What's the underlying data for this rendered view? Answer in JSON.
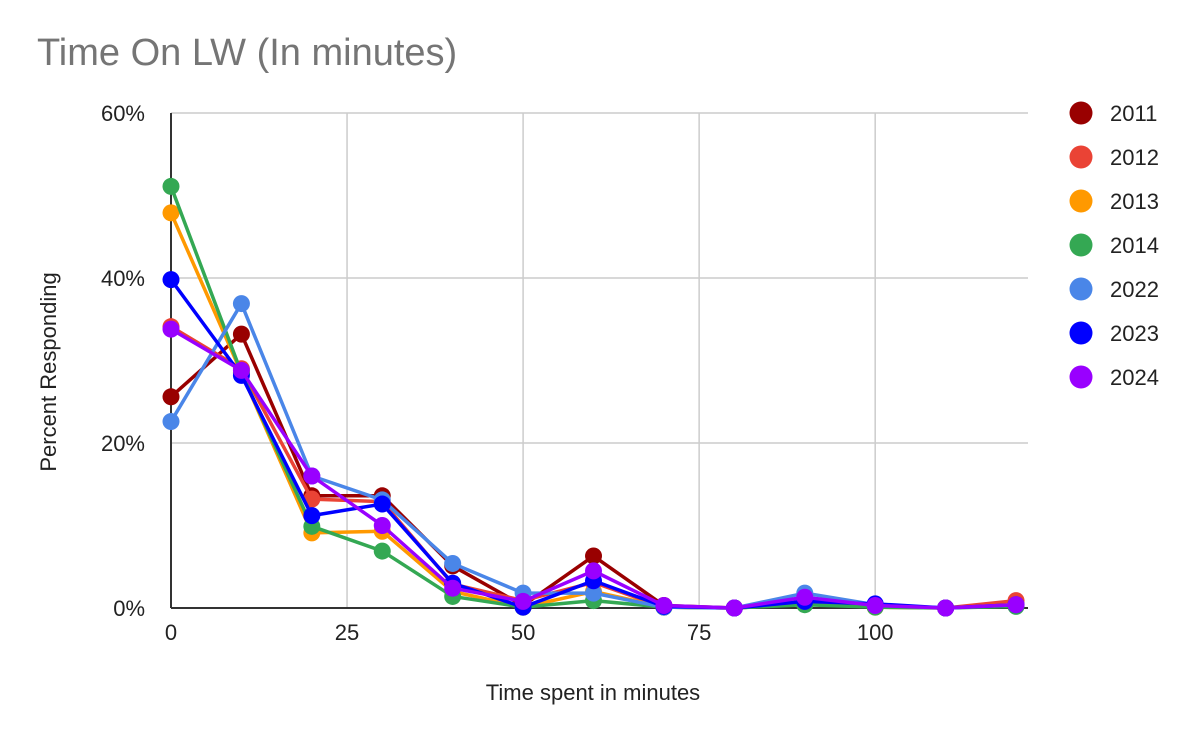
{
  "chart_data": {
    "type": "line",
    "title": "Time On LW (In minutes)",
    "xlabel": "Time spent in minutes",
    "ylabel": "Percent Responding",
    "xlim": [
      -2,
      122
    ],
    "ylim": [
      0,
      0.6
    ],
    "x_ticks": [
      0,
      25,
      50,
      75,
      100
    ],
    "x_tick_labels": [
      "0",
      "25",
      "50",
      "75",
      "100"
    ],
    "y_ticks": [
      0,
      0.2,
      0.4,
      0.6
    ],
    "y_tick_labels": [
      "0%",
      "20%",
      "40%",
      "60%"
    ],
    "grid": true,
    "legend_position": "right",
    "x": [
      0,
      10,
      20,
      30,
      40,
      50,
      60,
      70,
      80,
      90,
      100,
      110,
      120
    ],
    "series": [
      {
        "name": "2011",
        "color": "#990000",
        "values": [
          0.256,
          0.332,
          0.136,
          0.136,
          0.051,
          0.003,
          0.063,
          0.003,
          0.0,
          0.005,
          0.002,
          0.0,
          0.004
        ]
      },
      {
        "name": "2012",
        "color": "#ea4335",
        "values": [
          0.341,
          0.29,
          0.132,
          0.129,
          0.029,
          0.009,
          0.031,
          0.001,
          0.0,
          0.008,
          0.002,
          0.0,
          0.009
        ]
      },
      {
        "name": "2013",
        "color": "#ff9900",
        "values": [
          0.479,
          0.285,
          0.091,
          0.093,
          0.02,
          0.001,
          0.02,
          0.001,
          0.0,
          0.005,
          0.001,
          0.0,
          0.003
        ]
      },
      {
        "name": "2014",
        "color": "#34a853",
        "values": [
          0.511,
          0.285,
          0.099,
          0.069,
          0.014,
          0.001,
          0.009,
          0.001,
          0.0,
          0.004,
          0.001,
          0.0,
          0.002
        ]
      },
      {
        "name": "2022",
        "color": "#4a86e8",
        "values": [
          0.226,
          0.369,
          0.16,
          0.131,
          0.054,
          0.018,
          0.018,
          0.001,
          0.0,
          0.018,
          0.004,
          0.0,
          0.004
        ]
      },
      {
        "name": "2023",
        "color": "#0000ff",
        "values": [
          0.398,
          0.282,
          0.112,
          0.126,
          0.03,
          0.001,
          0.033,
          0.002,
          0.0,
          0.008,
          0.005,
          0.0,
          0.004
        ]
      },
      {
        "name": "2024",
        "color": "#9900ff",
        "values": [
          0.338,
          0.288,
          0.16,
          0.1,
          0.024,
          0.008,
          0.045,
          0.003,
          0.0,
          0.013,
          0.003,
          0.0,
          0.004
        ]
      }
    ]
  }
}
